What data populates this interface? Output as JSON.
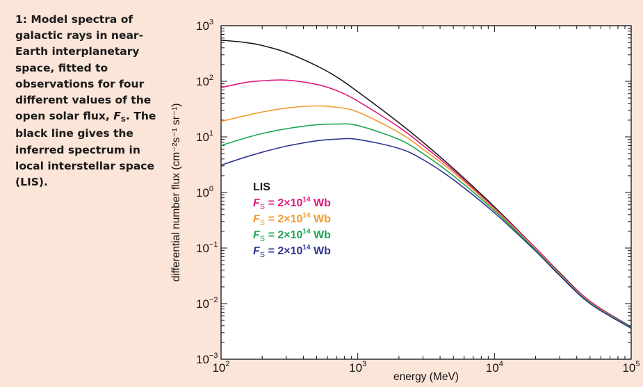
{
  "caption": {
    "prefix": "1: Model spectra of galactic rays in near-Earth interplanetary space, fitted to observations for four different values of the open solar flux, ",
    "symbol": "F",
    "symbol_sub": "S",
    "suffix": ". The black line gives the inferred spectrum in local interstellar space (LIS)."
  },
  "chart_data": {
    "type": "line",
    "xlabel": "energy (MeV)",
    "ylabel": "differential number flux (cm⁻²s⁻¹ sr⁻¹)",
    "xscale": "log",
    "yscale": "log",
    "xlim": [
      100,
      100000
    ],
    "ylim": [
      0.001,
      1000
    ],
    "x_ticks": [
      {
        "base": "10",
        "exp": "2",
        "value": 100
      },
      {
        "base": "10",
        "exp": "3",
        "value": 1000
      },
      {
        "base": "10",
        "exp": "4",
        "value": 10000
      },
      {
        "base": "10",
        "exp": "5",
        "value": 100000
      }
    ],
    "y_ticks": [
      {
        "base": "10",
        "exp": "3",
        "value": 1000
      },
      {
        "base": "10",
        "exp": "2",
        "value": 100
      },
      {
        "base": "10",
        "exp": "1",
        "value": 10
      },
      {
        "base": "10",
        "exp": "0",
        "value": 1
      },
      {
        "base": "10",
        "exp": "−1",
        "value": 0.1
      },
      {
        "base": "10",
        "exp": "−2",
        "value": 0.01
      },
      {
        "base": "10",
        "exp": "−3",
        "value": 0.001
      }
    ],
    "grid": false,
    "legend_position": "center-left",
    "series": [
      {
        "name": "LIS",
        "color": "#1a1a1a",
        "x": [
          100,
          150,
          200,
          300,
          500,
          700,
          1000,
          2000,
          3000,
          5000,
          10000,
          20000,
          30000,
          50000,
          100000
        ],
        "y": [
          550,
          500,
          440,
          330,
          190,
          120,
          65,
          18,
          8,
          2.7,
          0.55,
          0.1,
          0.036,
          0.011,
          0.0038
        ]
      },
      {
        "name": "F",
        "name_sub": "S",
        "value_text": " = 2×10",
        "value_exp": "14",
        "unit": " Wb",
        "color": "#e0197d",
        "x": [
          100,
          150,
          200,
          300,
          500,
          700,
          1000,
          2000,
          3000,
          5000,
          10000,
          20000,
          30000,
          50000,
          100000
        ],
        "y": [
          77,
          95,
          102,
          105,
          88,
          68,
          44,
          15,
          7,
          2.5,
          0.52,
          0.1,
          0.035,
          0.011,
          0.0037
        ]
      },
      {
        "name": "F",
        "name_sub": "S",
        "value_text": " = 2×10",
        "value_exp": "14",
        "unit": " Wb",
        "color": "#f39a2b",
        "x": [
          100,
          150,
          200,
          300,
          500,
          700,
          1000,
          2000,
          3000,
          5000,
          10000,
          20000,
          30000,
          50000,
          100000
        ],
        "y": [
          19,
          24,
          28,
          33,
          36,
          34,
          28,
          12,
          6,
          2.3,
          0.5,
          0.095,
          0.034,
          0.0105,
          0.0037
        ]
      },
      {
        "name": "F",
        "name_sub": "S",
        "value_text": " = 2×10",
        "value_exp": "14",
        "unit": " Wb",
        "color": "#1ca654",
        "x": [
          100,
          150,
          200,
          300,
          500,
          700,
          1000,
          2000,
          3000,
          5000,
          10000,
          20000,
          30000,
          50000,
          100000
        ],
        "y": [
          7,
          9.5,
          11.5,
          14,
          16.5,
          17,
          16,
          9,
          5,
          2,
          0.47,
          0.092,
          0.033,
          0.0103,
          0.0037
        ]
      },
      {
        "name": "F",
        "name_sub": "S",
        "value_text": " = 2×10",
        "value_exp": "14",
        "unit": " Wb",
        "color": "#2e3590",
        "x": [
          100,
          150,
          200,
          300,
          500,
          700,
          1000,
          2000,
          3000,
          5000,
          10000,
          20000,
          30000,
          50000,
          100000
        ],
        "y": [
          3.1,
          4.3,
          5.3,
          6.8,
          8.5,
          9.1,
          9,
          6.2,
          3.9,
          1.7,
          0.43,
          0.088,
          0.032,
          0.01,
          0.0036
        ]
      }
    ]
  }
}
